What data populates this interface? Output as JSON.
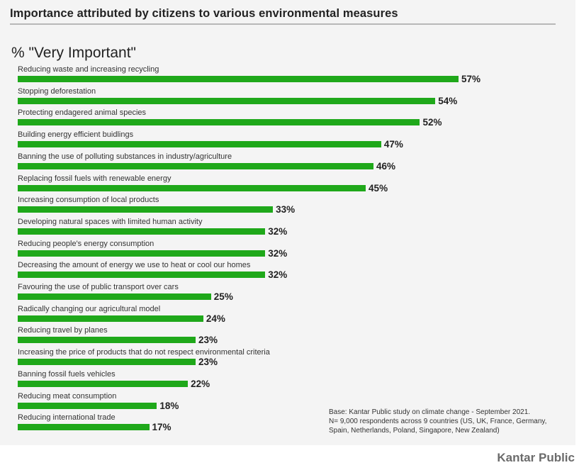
{
  "chart_data": {
    "type": "bar",
    "orientation": "horizontal",
    "title": "Importance attributed by citizens to various environmental measures",
    "subtitle": "% \"Very Important\"",
    "categories": [
      "Reducing waste and increasing recycling",
      "Stopping deforestation",
      "Protecting endagered animal species",
      "Building energy efficient buidlings",
      "Banning the use of polluting substances in industry/agriculture",
      "Replacing fossil fuels with renewable energy",
      "Increasing consumption of local products",
      "Developing natural spaces with limited human activity",
      "Reducing people's energy consumption",
      "Decreasing the amount of energy we use to heat or cool our homes",
      "Favouring the use of public transport over cars",
      "Radically changing our agricultural model",
      "Reducing travel by planes",
      "Increasing the price of products that do not respect environmental criteria",
      "Banning fossil fuels vehicles",
      "Reducing meat consumption",
      "Reducing international trade"
    ],
    "values": [
      57,
      54,
      52,
      47,
      46,
      45,
      33,
      32,
      32,
      32,
      25,
      24,
      23,
      23,
      22,
      18,
      17
    ],
    "value_labels": [
      "57%",
      "54%",
      "52%",
      "47%",
      "46%",
      "45%",
      "33%",
      "32%",
      "32%",
      "32%",
      "25%",
      "24%",
      "23%",
      "23%",
      "22%",
      "18%",
      "17%"
    ],
    "xlim": [
      0,
      60
    ],
    "bar_color": "#1fa81a",
    "grid": false
  },
  "note": {
    "line1": "Base: Kantar Public study on climate change - September 2021.",
    "line2": "N= 9,000 respondents across 9 countries (US, UK, France, Germany,",
    "line3": "Spain, Netherlands, Poland, Singapore, New Zealand)"
  },
  "brand": "Kantar Public"
}
